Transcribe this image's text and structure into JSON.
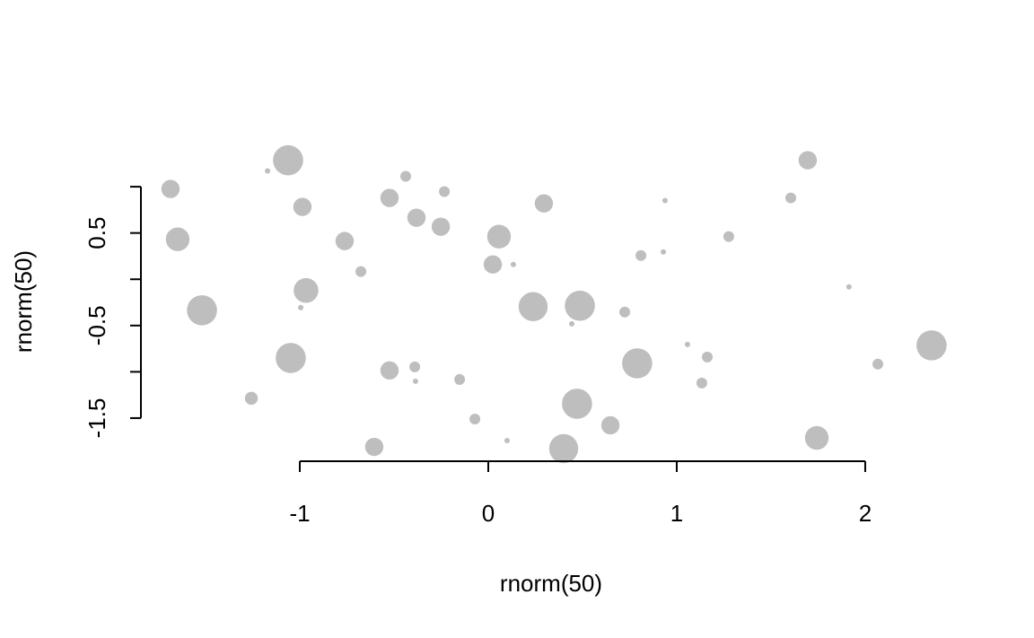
{
  "chart_data": {
    "type": "scatter",
    "x_label": "rnorm(50)",
    "y_label": "rnorm(50)",
    "color": "#bebebe",
    "x": [
      -1.686,
      -1.648,
      -1.519,
      -1.257,
      -1.171,
      -1.062,
      -1.048,
      -0.986,
      -0.995,
      -0.967,
      -0.762,
      -0.676,
      -0.605,
      -0.524,
      -0.524,
      -0.438,
      -0.39,
      -0.386,
      -0.381,
      -0.252,
      -0.233,
      -0.152,
      -0.071,
      0.024,
      0.057,
      0.1,
      0.133,
      0.238,
      0.295,
      0.4,
      0.443,
      0.471,
      0.486,
      0.648,
      0.724,
      0.79,
      0.81,
      0.929,
      0.938,
      1.057,
      1.133,
      1.162,
      1.276,
      1.605,
      1.695,
      1.743,
      1.914,
      2.067,
      2.352
    ],
    "y": [
      0.976,
      0.432,
      -0.335,
      -1.286,
      1.17,
      1.286,
      -0.85,
      0.782,
      -0.306,
      -0.121,
      0.413,
      0.083,
      -1.811,
      0.879,
      -0.985,
      1.112,
      -0.947,
      -1.102,
      0.665,
      0.568,
      0.947,
      -1.083,
      -1.51,
      0.16,
      0.461,
      -1.743,
      0.16,
      -0.296,
      0.82,
      -1.83,
      -0.481,
      -1.345,
      -0.286,
      -1.578,
      -0.354,
      -0.908,
      0.257,
      0.296,
      0.85,
      -0.704,
      -1.121,
      -0.84,
      0.461,
      0.879,
      1.286,
      -1.714,
      -0.083,
      -0.917,
      -0.714
    ],
    "sizes": [
      1.7,
      2.2,
      2.8,
      1.2,
      0.5,
      2.8,
      2.8,
      1.7,
      0.5,
      2.3,
      1.7,
      1.0,
      1.7,
      1.7,
      1.7,
      1.0,
      1.0,
      0.5,
      1.7,
      1.7,
      1.0,
      1.0,
      1.0,
      1.7,
      2.2,
      0.5,
      0.5,
      2.7,
      1.7,
      2.7,
      0.5,
      2.8,
      2.8,
      1.7,
      1.0,
      2.8,
      1.0,
      0.5,
      0.5,
      0.5,
      1.0,
      1.0,
      1.0,
      1.0,
      1.7,
      2.2,
      0.5,
      1.0,
      2.8
    ],
    "xlim": [
      -1.843,
      2.505
    ],
    "ylim": [
      -1.966,
      1.505
    ],
    "xticks": [
      -1,
      0,
      1,
      2
    ],
    "yticks": [
      -1.5,
      -0.5,
      0.5
    ],
    "yticks_minor": [
      -1,
      0,
      1
    ]
  }
}
